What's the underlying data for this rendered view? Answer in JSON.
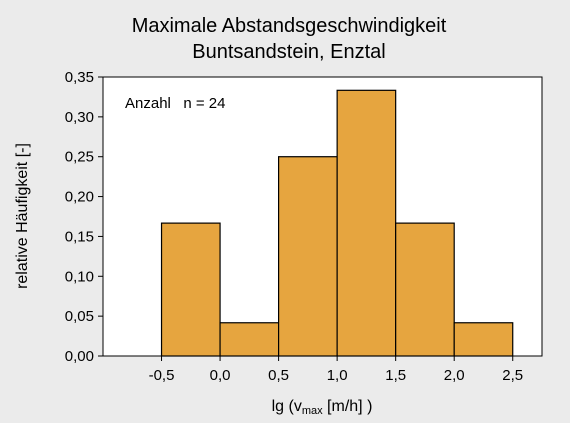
{
  "chart_data": {
    "type": "bar",
    "title": "Maximale Abstandsgeschwindigkeit",
    "subtitle": "Buntsandstein, Enztal",
    "xlabel_prefix": "lg (v",
    "xlabel_sub": "max",
    "xlabel_suffix": " [m/h] )",
    "ylabel": "relative Häufigkeit [-]",
    "annotation": "Anzahl   n = 24",
    "bins": [
      {
        "from": -0.5,
        "to": 0.0,
        "value": 0.1667
      },
      {
        "from": 0.0,
        "to": 0.5,
        "value": 0.0417
      },
      {
        "from": 0.5,
        "to": 1.0,
        "value": 0.25
      },
      {
        "from": 1.0,
        "to": 1.5,
        "value": 0.3333
      },
      {
        "from": 1.5,
        "to": 2.0,
        "value": 0.1667
      },
      {
        "from": 2.0,
        "to": 2.5,
        "value": 0.0417
      }
    ],
    "xlim": [
      -1.0,
      2.75
    ],
    "ylim": [
      0,
      0.35
    ],
    "x_ticks": [
      -0.5,
      0.0,
      0.5,
      1.0,
      1.5,
      2.0,
      2.5
    ],
    "x_tick_labels": [
      "-0,5",
      "0,0",
      "0,5",
      "1,0",
      "1,5",
      "2,0",
      "2,5"
    ],
    "y_ticks": [
      0,
      0.05,
      0.1,
      0.15,
      0.2,
      0.25,
      0.3,
      0.35
    ],
    "y_tick_labels": [
      "0,00",
      "0,05",
      "0,10",
      "0,15",
      "0,20",
      "0,25",
      "0,30",
      "0,35"
    ],
    "bar_color": "#e6a53f",
    "bar_edge_color": "#000000",
    "plot_background": "#ffffff",
    "page_background": "#ebebeb",
    "grid": false
  }
}
